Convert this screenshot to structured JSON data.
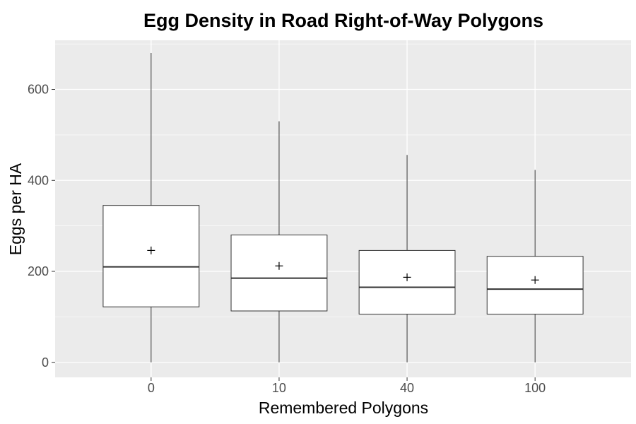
{
  "chart_data": {
    "type": "boxplot",
    "title": "Egg Density in Road Right-of-Way Polygons",
    "xlabel": "Remembered Polygons",
    "ylabel": "Eggs per HA",
    "categories": [
      "0",
      "10",
      "40",
      "100"
    ],
    "boxes": [
      {
        "min": 0,
        "q1": 122,
        "median": 210,
        "q3": 345,
        "max": 680,
        "mean": 246
      },
      {
        "min": 0,
        "q1": 113,
        "median": 185,
        "q3": 280,
        "max": 530,
        "mean": 212
      },
      {
        "min": 0,
        "q1": 106,
        "median": 165,
        "q3": 246,
        "max": 456,
        "mean": 187
      },
      {
        "min": 0,
        "q1": 106,
        "median": 161,
        "q3": 233,
        "max": 423,
        "mean": 181
      }
    ],
    "yticks": [
      0,
      200,
      400,
      600
    ],
    "ytick_labels": [
      "0",
      "200",
      "400",
      "600"
    ],
    "ylim": [
      -33,
      708
    ],
    "grid": true,
    "colors": {
      "panel": "#ebebeb",
      "grid": "#ffffff",
      "box_fill": "#ffffff",
      "box_stroke": "#333333",
      "tick_label": "#4d4d4d",
      "tick": "#333333"
    }
  }
}
